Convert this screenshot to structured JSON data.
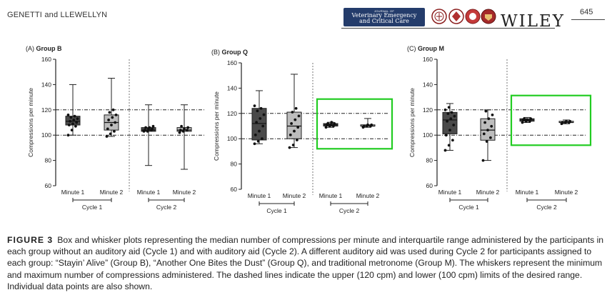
{
  "header": {
    "authors": "GENETTI and LLEWELLYN",
    "journal_kicker": "JOURNAL OF",
    "journal_line1": "Veterinary Emergency",
    "journal_line2": "and Critical Care",
    "publisher": "WILEY",
    "page_number": "645"
  },
  "colors": {
    "journal": "#243c6b",
    "box_dark": "#4a4a4a",
    "box_light": "#bdbdbd",
    "highlight": "#22cc22"
  },
  "caption": {
    "label": "FIGURE 3",
    "text": "Box and whisker plots representing the median number of compressions per minute and interquartile range administered by the participants in each group without an auditory aid (Cycle 1) and with auditory aid (Cycle 2). A different auditory aid was used during Cycle 2 for participants assigned to each group: “Stayin’ Alive” (Group B), “Another One Bites the Dust” (Group Q), and traditional metronome (Group M). The whiskers represent the minimum and maximum number of compressions administered. The dashed lines indicate the upper (120 cpm) and lower (100 cpm) limits of the desired range. Individual data points are also shown."
  },
  "chart_data": [
    {
      "type": "box",
      "panel": "(A)",
      "title": "Group B",
      "ylabel": "Compressions per minute",
      "ylim": [
        60,
        160
      ],
      "yticks": [
        60,
        80,
        100,
        120,
        140,
        160
      ],
      "reference_lines": [
        100,
        120
      ],
      "categories": [
        "Minute 1",
        "Minute 2",
        "Minute 1",
        "Minute 2"
      ],
      "groups": [
        "Cycle 1",
        "Cycle 2"
      ],
      "highlight_cycle2": false,
      "boxes": [
        {
          "label": "Minute 1",
          "min": 100,
          "q1": 108,
          "median": 111,
          "q3": 115,
          "max": 140,
          "shade": "dark",
          "points": [
            100,
            104,
            107,
            108,
            109,
            110,
            111,
            112,
            113,
            114,
            115,
            116
          ]
        },
        {
          "label": "Minute 2",
          "min": 99,
          "q1": 104,
          "median": 110,
          "q3": 116,
          "max": 145,
          "shade": "light",
          "points": [
            99,
            101,
            103,
            105,
            108,
            110,
            112,
            114,
            116,
            118,
            120
          ]
        },
        {
          "label": "Minute 1",
          "min": 76,
          "q1": 103,
          "median": 104,
          "q3": 106,
          "max": 124,
          "shade": "dark",
          "points": [
            103,
            103,
            104,
            104,
            105,
            105,
            106,
            106,
            107
          ]
        },
        {
          "label": "Minute 2",
          "min": 73,
          "q1": 103,
          "median": 104,
          "q3": 106,
          "max": 124,
          "shade": "light",
          "points": [
            102,
            103,
            104,
            104,
            105,
            106,
            107
          ]
        }
      ]
    },
    {
      "type": "box",
      "panel": "(B)",
      "title": "Group Q",
      "ylabel": "Compressions per minute",
      "ylim": [
        60,
        160
      ],
      "yticks": [
        60,
        80,
        100,
        120,
        140,
        160
      ],
      "reference_lines": [
        100,
        120
      ],
      "categories": [
        "Minute 1",
        "Minute 2",
        "Minute 1",
        "Minute 2"
      ],
      "groups": [
        "Cycle 1",
        "Cycle 2"
      ],
      "highlight_cycle2": true,
      "boxes": [
        {
          "label": "Minute 1",
          "min": 96,
          "q1": 99,
          "median": 112,
          "q3": 124,
          "max": 138,
          "shade": "dark",
          "points": [
            96,
            98,
            100,
            103,
            106,
            110,
            113,
            116,
            119,
            122,
            124,
            126
          ]
        },
        {
          "label": "Minute 2",
          "min": 93,
          "q1": 100,
          "median": 110,
          "q3": 121,
          "max": 151,
          "shade": "light",
          "points": [
            93,
            95,
            99,
            103,
            106,
            109,
            112,
            115,
            118,
            121,
            124
          ]
        },
        {
          "label": "Minute 1",
          "min": 109,
          "q1": 110,
          "median": 111,
          "q3": 112,
          "max": 113,
          "shade": "dark",
          "points": [
            109,
            110,
            110,
            111,
            111,
            112,
            112,
            113
          ]
        },
        {
          "label": "Minute 2",
          "min": 109,
          "q1": 110,
          "median": 110,
          "q3": 111,
          "max": 116,
          "shade": "light",
          "points": [
            109,
            110,
            110,
            110,
            111,
            111
          ]
        }
      ]
    },
    {
      "type": "box",
      "panel": "(C)",
      "title": "Group M",
      "ylabel": "Compressions per minute",
      "ylim": [
        60,
        160
      ],
      "yticks": [
        60,
        80,
        100,
        120,
        140,
        160
      ],
      "reference_lines": [
        100,
        120
      ],
      "categories": [
        "Minute 1",
        "Minute 2",
        "Minute 1",
        "Minute 2"
      ],
      "groups": [
        "Cycle 1",
        "Cycle 2"
      ],
      "highlight_cycle2": true,
      "boxes": [
        {
          "label": "Minute 1",
          "min": 88,
          "q1": 101,
          "median": 112,
          "q3": 118,
          "max": 125,
          "shade": "dark",
          "points": [
            88,
            92,
            96,
            100,
            104,
            108,
            111,
            113,
            115,
            117,
            118,
            120,
            122
          ]
        },
        {
          "label": "Minute 2",
          "min": 80,
          "q1": 96,
          "median": 104,
          "q3": 113,
          "max": 120,
          "shade": "light",
          "points": [
            80,
            95,
            98,
            101,
            104,
            107,
            110,
            113,
            116,
            119
          ]
        },
        {
          "label": "Minute 1",
          "min": 110,
          "q1": 111,
          "median": 112,
          "q3": 113,
          "max": 114,
          "shade": "dark",
          "points": [
            110,
            111,
            111,
            112,
            112,
            113,
            113
          ]
        },
        {
          "label": "Minute 2",
          "min": 109,
          "q1": 110,
          "median": 110,
          "q3": 111,
          "max": 112,
          "shade": "light",
          "points": [
            109,
            110,
            110,
            110,
            111,
            111
          ]
        }
      ]
    }
  ]
}
